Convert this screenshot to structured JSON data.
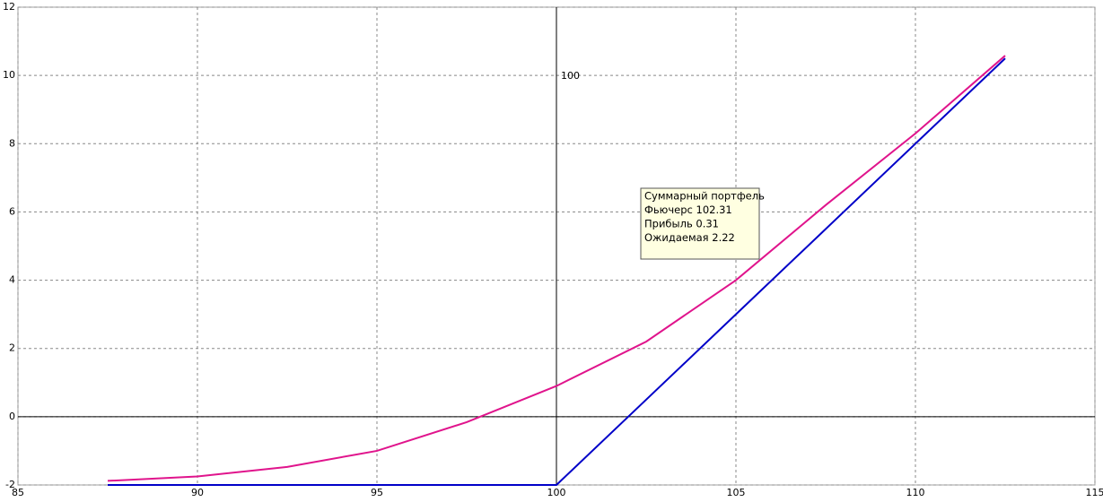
{
  "chart_data": {
    "type": "line",
    "x": [
      87.5,
      90,
      92.5,
      95,
      97.5,
      100,
      102.5,
      105,
      107.5,
      110,
      112.5
    ],
    "series": [
      {
        "color": "#0000c8",
        "values": [
          -2,
          -2,
          -2,
          -2,
          -2,
          -2,
          0.5,
          3,
          5.5,
          8,
          10.5
        ]
      },
      {
        "color": "#e0148c",
        "values": [
          -1.88,
          -1.75,
          -1.47,
          -1.0,
          -0.16,
          0.9,
          2.2,
          4.0,
          6.2,
          8.3,
          10.58
        ]
      }
    ],
    "xlim": [
      85,
      115
    ],
    "ylim": [
      -2,
      12
    ],
    "xticks": [
      85,
      90,
      95,
      100,
      105,
      110,
      115
    ],
    "yticks": [
      -2,
      0,
      2,
      4,
      6,
      8,
      10,
      12
    ],
    "grid": true,
    "hline": 0,
    "vline": 100,
    "tooltip": [
      "Суммарный портфель",
      "Фьючерс  102.31",
      "Прибыль  0.31",
      "Ожидаемая 2.22"
    ]
  }
}
